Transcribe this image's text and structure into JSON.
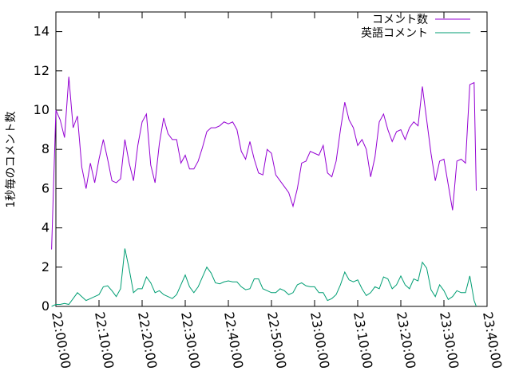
{
  "chart_data": {
    "type": "line",
    "title": "",
    "xlabel": "",
    "ylabel": "1秒毎のコメント数",
    "xlim": [
      "22:00:00",
      "23:40:00"
    ],
    "ylim": [
      0,
      15
    ],
    "x_ticks": [
      "22:00:00",
      "22:10:00",
      "22:20:00",
      "22:30:00",
      "22:40:00",
      "22:50:00",
      "23:00:00",
      "23:10:00",
      "23:20:00",
      "23:30:00",
      "23:40:00"
    ],
    "y_ticks": [
      0,
      2,
      4,
      6,
      8,
      10,
      12,
      14
    ],
    "grid": false,
    "legend_position": "top-right",
    "series": [
      {
        "name": "コメント数",
        "color": "#9400d3",
        "points": [
          [
            "21:59:00",
            2.9
          ],
          [
            "22:00:00",
            10.0
          ],
          [
            "22:01:00",
            9.5
          ],
          [
            "22:02:00",
            8.6
          ],
          [
            "22:03:00",
            11.7
          ],
          [
            "22:04:00",
            9.1
          ],
          [
            "22:05:00",
            9.7
          ],
          [
            "22:06:00",
            7.1
          ],
          [
            "22:07:00",
            6.0
          ],
          [
            "22:08:00",
            7.3
          ],
          [
            "22:09:00",
            6.3
          ],
          [
            "22:10:00",
            7.5
          ],
          [
            "22:11:00",
            8.5
          ],
          [
            "22:12:00",
            7.5
          ],
          [
            "22:13:00",
            6.4
          ],
          [
            "22:14:00",
            6.3
          ],
          [
            "22:15:00",
            6.5
          ],
          [
            "22:16:00",
            8.5
          ],
          [
            "22:17:00",
            7.3
          ],
          [
            "22:18:00",
            6.4
          ],
          [
            "22:19:00",
            8.2
          ],
          [
            "22:20:00",
            9.4
          ],
          [
            "22:21:00",
            9.8
          ],
          [
            "22:22:00",
            7.2
          ],
          [
            "22:23:00",
            6.3
          ],
          [
            "22:24:00",
            8.3
          ],
          [
            "22:25:00",
            9.6
          ],
          [
            "22:26:00",
            8.8
          ],
          [
            "22:27:00",
            8.5
          ],
          [
            "22:28:00",
            8.5
          ],
          [
            "22:29:00",
            7.3
          ],
          [
            "22:30:00",
            7.7
          ],
          [
            "22:31:00",
            7.0
          ],
          [
            "22:32:00",
            7.0
          ],
          [
            "22:33:00",
            7.4
          ],
          [
            "22:34:00",
            8.1
          ],
          [
            "22:35:00",
            8.9
          ],
          [
            "22:36:00",
            9.1
          ],
          [
            "22:37:00",
            9.1
          ],
          [
            "22:38:00",
            9.2
          ],
          [
            "22:39:00",
            9.4
          ],
          [
            "22:40:00",
            9.3
          ],
          [
            "22:41:00",
            9.4
          ],
          [
            "22:42:00",
            9.0
          ],
          [
            "22:43:00",
            7.9
          ],
          [
            "22:44:00",
            7.5
          ],
          [
            "22:45:00",
            8.4
          ],
          [
            "22:46:00",
            7.5
          ],
          [
            "22:47:00",
            6.8
          ],
          [
            "22:48:00",
            6.7
          ],
          [
            "22:49:00",
            8.0
          ],
          [
            "22:50:00",
            7.8
          ],
          [
            "22:51:00",
            6.7
          ],
          [
            "22:52:00",
            6.4
          ],
          [
            "22:53:00",
            6.1
          ],
          [
            "22:54:00",
            5.8
          ],
          [
            "22:55:00",
            5.1
          ],
          [
            "22:56:00",
            6.0
          ],
          [
            "22:57:00",
            7.3
          ],
          [
            "22:58:00",
            7.4
          ],
          [
            "22:59:00",
            7.9
          ],
          [
            "23:00:00",
            7.8
          ],
          [
            "23:01:00",
            7.7
          ],
          [
            "23:02:00",
            8.2
          ],
          [
            "23:03:00",
            6.8
          ],
          [
            "23:04:00",
            6.6
          ],
          [
            "23:05:00",
            7.4
          ],
          [
            "23:06:00",
            9.0
          ],
          [
            "23:07:00",
            10.4
          ],
          [
            "23:08:00",
            9.5
          ],
          [
            "23:09:00",
            9.1
          ],
          [
            "23:10:00",
            8.2
          ],
          [
            "23:11:00",
            8.5
          ],
          [
            "23:12:00",
            8.0
          ],
          [
            "23:13:00",
            6.6
          ],
          [
            "23:14:00",
            7.6
          ],
          [
            "23:15:00",
            9.4
          ],
          [
            "23:16:00",
            9.8
          ],
          [
            "23:17:00",
            9.0
          ],
          [
            "23:18:00",
            8.4
          ],
          [
            "23:19:00",
            8.9
          ],
          [
            "23:20:00",
            9.0
          ],
          [
            "23:21:00",
            8.5
          ],
          [
            "23:22:00",
            9.1
          ],
          [
            "23:23:00",
            9.4
          ],
          [
            "23:24:00",
            9.2
          ],
          [
            "23:25:00",
            11.2
          ],
          [
            "23:26:00",
            9.5
          ],
          [
            "23:27:00",
            7.8
          ],
          [
            "23:28:00",
            6.4
          ],
          [
            "23:29:00",
            7.4
          ],
          [
            "23:30:00",
            7.5
          ],
          [
            "23:31:00",
            6.2
          ],
          [
            "23:32:00",
            4.9
          ],
          [
            "23:33:00",
            7.4
          ],
          [
            "23:34:00",
            7.5
          ],
          [
            "23:35:00",
            7.3
          ],
          [
            "23:36:00",
            11.3
          ],
          [
            "23:37:00",
            11.4
          ],
          [
            "23:37:30",
            5.9
          ]
        ]
      },
      {
        "name": "英語コメント",
        "color": "#009e73",
        "points": [
          [
            "21:59:00",
            0.0
          ],
          [
            "22:00:00",
            0.1
          ],
          [
            "22:01:00",
            0.1
          ],
          [
            "22:02:00",
            0.15
          ],
          [
            "22:03:00",
            0.1
          ],
          [
            "22:04:00",
            0.4
          ],
          [
            "22:05:00",
            0.7
          ],
          [
            "22:06:00",
            0.5
          ],
          [
            "22:07:00",
            0.3
          ],
          [
            "22:08:00",
            0.4
          ],
          [
            "22:09:00",
            0.5
          ],
          [
            "22:10:00",
            0.6
          ],
          [
            "22:11:00",
            1.0
          ],
          [
            "22:12:00",
            1.05
          ],
          [
            "22:13:00",
            0.8
          ],
          [
            "22:14:00",
            0.5
          ],
          [
            "22:15:00",
            0.9
          ],
          [
            "22:16:00",
            2.95
          ],
          [
            "22:17:00",
            1.9
          ],
          [
            "22:18:00",
            0.7
          ],
          [
            "22:19:00",
            0.9
          ],
          [
            "22:20:00",
            0.9
          ],
          [
            "22:21:00",
            1.5
          ],
          [
            "22:22:00",
            1.2
          ],
          [
            "22:23:00",
            0.7
          ],
          [
            "22:24:00",
            0.8
          ],
          [
            "22:25:00",
            0.6
          ],
          [
            "22:26:00",
            0.5
          ],
          [
            "22:27:00",
            0.4
          ],
          [
            "22:28:00",
            0.6
          ],
          [
            "22:29:00",
            1.1
          ],
          [
            "22:30:00",
            1.6
          ],
          [
            "22:31:00",
            1.0
          ],
          [
            "22:32:00",
            0.7
          ],
          [
            "22:33:00",
            1.0
          ],
          [
            "22:34:00",
            1.5
          ],
          [
            "22:35:00",
            2.0
          ],
          [
            "22:36:00",
            1.7
          ],
          [
            "22:37:00",
            1.2
          ],
          [
            "22:38:00",
            1.15
          ],
          [
            "22:39:00",
            1.25
          ],
          [
            "22:40:00",
            1.3
          ],
          [
            "22:41:00",
            1.25
          ],
          [
            "22:42:00",
            1.25
          ],
          [
            "22:43:00",
            1.0
          ],
          [
            "22:44:00",
            0.85
          ],
          [
            "22:45:00",
            0.9
          ],
          [
            "22:46:00",
            1.4
          ],
          [
            "22:47:00",
            1.4
          ],
          [
            "22:48:00",
            0.9
          ],
          [
            "22:49:00",
            0.8
          ],
          [
            "22:50:00",
            0.7
          ],
          [
            "22:51:00",
            0.7
          ],
          [
            "22:52:00",
            0.9
          ],
          [
            "22:53:00",
            0.8
          ],
          [
            "22:54:00",
            0.6
          ],
          [
            "22:55:00",
            0.7
          ],
          [
            "22:56:00",
            1.1
          ],
          [
            "22:57:00",
            1.2
          ],
          [
            "22:58:00",
            1.05
          ],
          [
            "22:59:00",
            1.0
          ],
          [
            "23:00:00",
            1.0
          ],
          [
            "23:01:00",
            0.7
          ],
          [
            "23:02:00",
            0.7
          ],
          [
            "23:03:00",
            0.3
          ],
          [
            "23:04:00",
            0.4
          ],
          [
            "23:05:00",
            0.6
          ],
          [
            "23:06:00",
            1.1
          ],
          [
            "23:07:00",
            1.75
          ],
          [
            "23:08:00",
            1.35
          ],
          [
            "23:09:00",
            1.25
          ],
          [
            "23:10:00",
            1.35
          ],
          [
            "23:11:00",
            0.9
          ],
          [
            "23:12:00",
            0.55
          ],
          [
            "23:13:00",
            0.7
          ],
          [
            "23:14:00",
            1.0
          ],
          [
            "23:15:00",
            0.9
          ],
          [
            "23:16:00",
            1.5
          ],
          [
            "23:17:00",
            1.4
          ],
          [
            "23:18:00",
            0.9
          ],
          [
            "23:19:00",
            1.1
          ],
          [
            "23:20:00",
            1.55
          ],
          [
            "23:21:00",
            1.1
          ],
          [
            "23:22:00",
            0.9
          ],
          [
            "23:23:00",
            1.4
          ],
          [
            "23:24:00",
            1.3
          ],
          [
            "23:25:00",
            2.25
          ],
          [
            "23:26:00",
            1.95
          ],
          [
            "23:27:00",
            0.85
          ],
          [
            "23:28:00",
            0.5
          ],
          [
            "23:29:00",
            1.1
          ],
          [
            "23:30:00",
            0.8
          ],
          [
            "23:31:00",
            0.35
          ],
          [
            "23:32:00",
            0.5
          ],
          [
            "23:33:00",
            0.8
          ],
          [
            "23:34:00",
            0.7
          ],
          [
            "23:35:00",
            0.7
          ],
          [
            "23:36:00",
            1.55
          ],
          [
            "23:37:00",
            0.3
          ],
          [
            "23:37:30",
            0.0
          ]
        ]
      }
    ]
  }
}
